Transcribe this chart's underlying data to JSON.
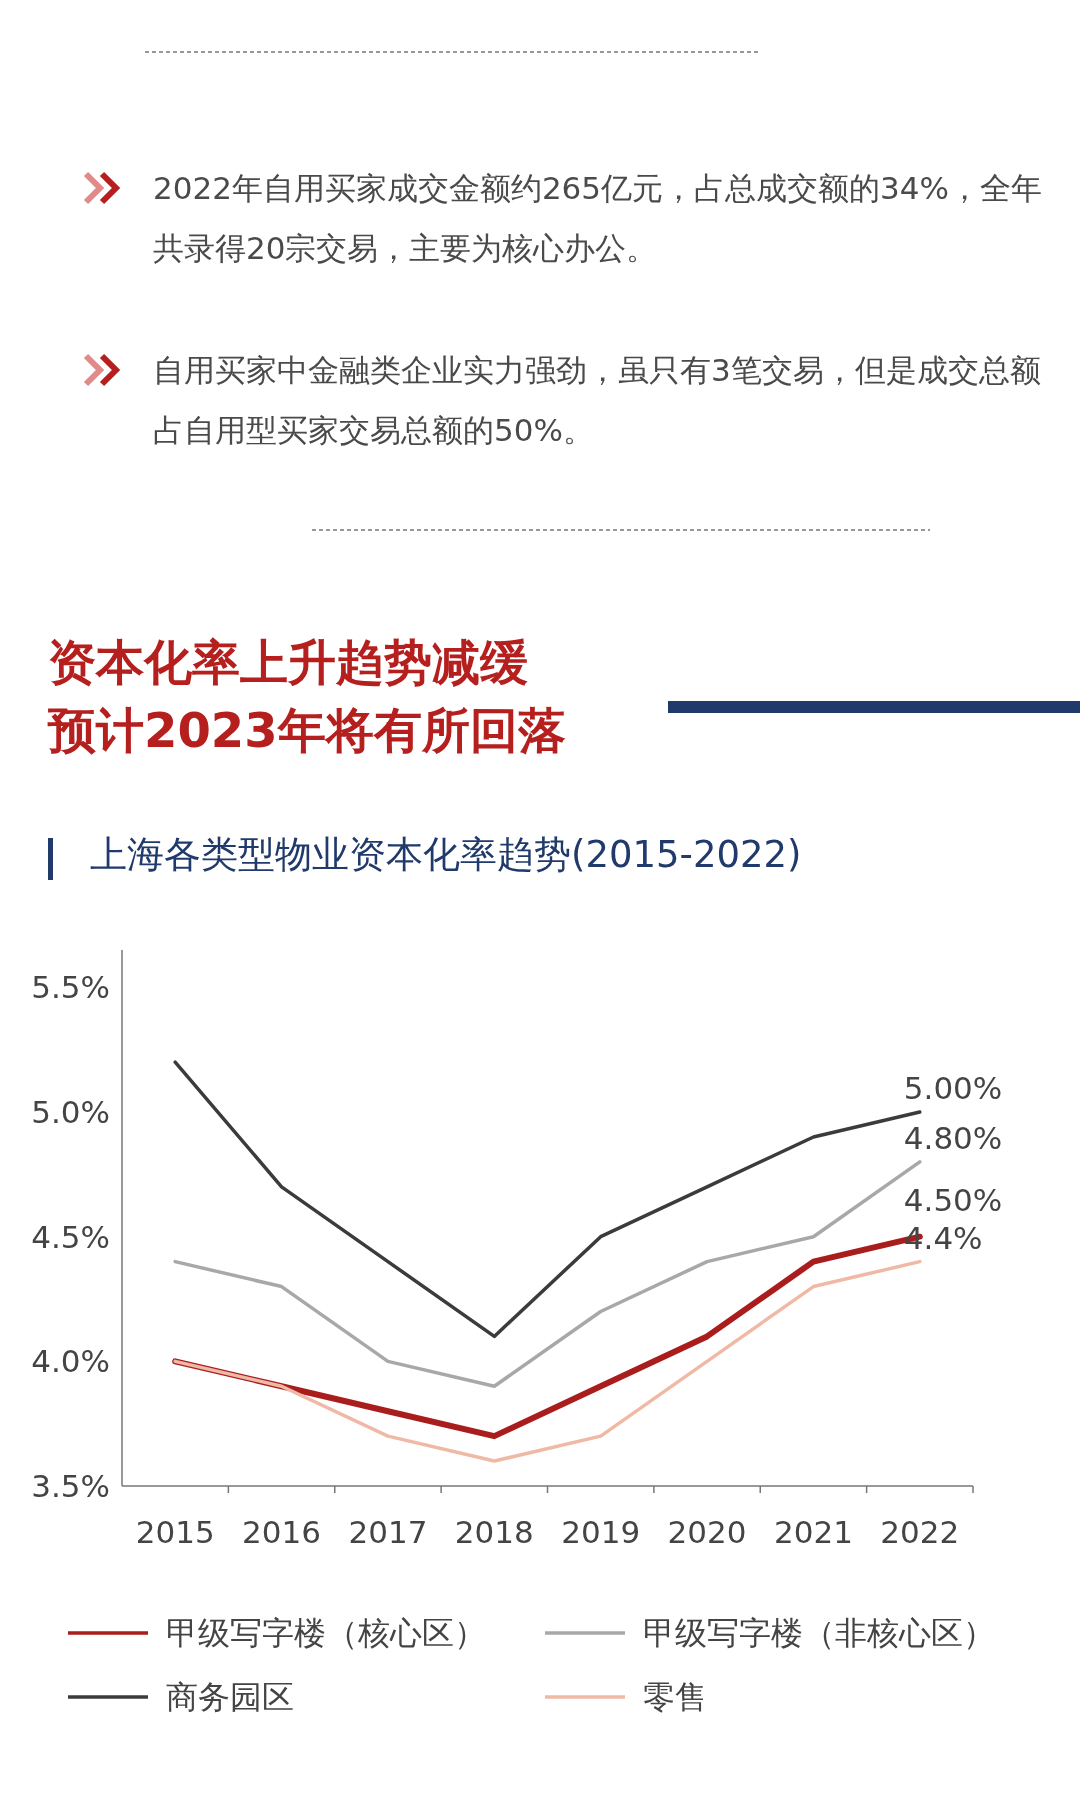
{
  "chart_data": {
    "type": "line",
    "title": "上海各类型物业资本化率趋势(2015-2022)",
    "annotations": [
      "2022年自用买家成交金额约265亿元，占总成交额的34%，全年共录得20宗交易，主要为核心办公。",
      "自用买家中金融类企业实力强劲，虽只有3笔交易，但是成交总额占自用型买家交易总额的50%。",
      "资本化率上升趋势减缓",
      "预计2023年将有所回落"
    ],
    "categories": [
      "2015",
      "2016",
      "2017",
      "2018",
      "2019",
      "2020",
      "2021",
      "2022"
    ],
    "series": [
      {
        "name": "甲级写字楼（核心区）",
        "color": "#a91d1d",
        "values": [
          4.0,
          3.9,
          3.8,
          3.7,
          3.9,
          4.1,
          4.4,
          4.5
        ],
        "value_labels": [
          null,
          null,
          null,
          null,
          null,
          null,
          null,
          "4.50%"
        ]
      },
      {
        "name": "甲级写字楼（非核心区）",
        "color": "#a8a8a8",
        "values": [
          4.4,
          4.3,
          4.0,
          3.9,
          4.2,
          4.4,
          4.5,
          4.8
        ],
        "value_labels": [
          null,
          null,
          null,
          null,
          null,
          null,
          null,
          "4.80%"
        ]
      },
      {
        "name": "商务园区",
        "color": "#3b3b3b",
        "values": [
          5.2,
          4.7,
          4.4,
          4.1,
          4.5,
          4.7,
          4.9,
          5.0
        ],
        "value_labels": [
          null,
          null,
          null,
          null,
          null,
          null,
          null,
          "5.00%"
        ]
      },
      {
        "name": "零售",
        "color": "#f0b9a6",
        "values": [
          4.0,
          3.9,
          3.7,
          3.6,
          3.7,
          4.0,
          4.3,
          4.4
        ],
        "value_labels": [
          null,
          null,
          null,
          null,
          null,
          null,
          null,
          "4.4%"
        ]
      }
    ],
    "ylim": [
      3.5,
      5.65
    ],
    "yticks": [
      {
        "value": 3.5,
        "label": "3.5%"
      },
      {
        "value": 4.0,
        "label": "4.0%"
      },
      {
        "value": 4.5,
        "label": "4.5%"
      },
      {
        "value": 5.0,
        "label": "5.0%"
      },
      {
        "value": 5.5,
        "label": "5.5%"
      }
    ],
    "grid": false,
    "legend": "bottom"
  }
}
